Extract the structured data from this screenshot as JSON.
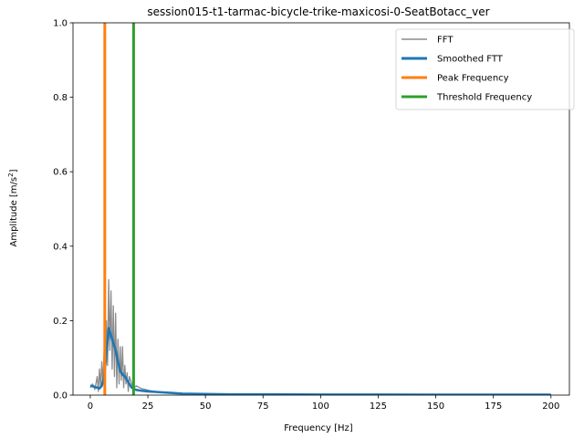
{
  "chart_data": {
    "type": "line",
    "title": "session015-t1-tarmac-bicycle-trike-maxicosi-0-SeatBotacc_ver",
    "xlabel": "Frequency [Hz]",
    "ylabel_main": "Amplitude [m/s",
    "ylabel_sup": "2",
    "ylabel_end": "]",
    "xlim": [
      -7.5,
      208
    ],
    "ylim": [
      0,
      1.0
    ],
    "xticks": [
      0,
      25,
      50,
      75,
      100,
      125,
      150,
      175,
      200
    ],
    "xtick_labels": [
      "0",
      "25",
      "50",
      "75",
      "100",
      "125",
      "150",
      "175",
      "200"
    ],
    "yticks": [
      0.0,
      0.2,
      0.4,
      0.6,
      0.8,
      1.0
    ],
    "ytick_labels": [
      "0.0",
      "0.2",
      "0.4",
      "0.6",
      "0.8",
      "1.0"
    ],
    "legend_position": "top-right",
    "series": [
      {
        "name": "FFT",
        "color": "#8c8c8c",
        "type": "line",
        "x": [
          0,
          1,
          2,
          3,
          3.5,
          4,
          4.5,
          5,
          5.5,
          6,
          6.5,
          7,
          7.5,
          8,
          8.5,
          9,
          9.5,
          10,
          10.5,
          11,
          11.5,
          12,
          12.5,
          13,
          13.5,
          14,
          14.5,
          15,
          15.5,
          16,
          16.5,
          17,
          18,
          19,
          20,
          22,
          24,
          26,
          28,
          30,
          35,
          40,
          50,
          60,
          80,
          100,
          125,
          150,
          175,
          200
        ],
        "values": [
          0.02,
          0.03,
          0.015,
          0.05,
          0.01,
          0.07,
          0.02,
          0.09,
          0.03,
          0.12,
          0.05,
          0.2,
          0.08,
          0.31,
          0.12,
          0.28,
          0.07,
          0.24,
          0.05,
          0.22,
          0.02,
          0.15,
          0.03,
          0.13,
          0.04,
          0.13,
          0.02,
          0.08,
          0.03,
          0.06,
          0.01,
          0.05,
          0.03,
          0.02,
          0.025,
          0.018,
          0.015,
          0.012,
          0.01,
          0.008,
          0.006,
          0.004,
          0.003,
          0.002,
          0.002,
          0.0015,
          0.0015,
          0.001,
          0.001,
          0.001
        ]
      },
      {
        "name": "Smoothed FTT",
        "color": "#1f77b4",
        "type": "line",
        "x": [
          0,
          1,
          2,
          3,
          4,
          5,
          6,
          7,
          8,
          9,
          10,
          11,
          12,
          13,
          14,
          15,
          16,
          17,
          18,
          19,
          20,
          22,
          25,
          30,
          35,
          40,
          50,
          60,
          80,
          100,
          125,
          150,
          175,
          200
        ],
        "values": [
          0.025,
          0.024,
          0.022,
          0.02,
          0.018,
          0.025,
          0.05,
          0.11,
          0.18,
          0.16,
          0.14,
          0.12,
          0.09,
          0.065,
          0.055,
          0.05,
          0.04,
          0.03,
          0.02,
          0.016,
          0.014,
          0.012,
          0.01,
          0.008,
          0.006,
          0.004,
          0.003,
          0.002,
          0.002,
          0.0015,
          0.0015,
          0.001,
          0.001,
          0.001
        ]
      },
      {
        "name": "Peak Frequency",
        "color": "#ff7f0e",
        "type": "vline",
        "x": 6.3
      },
      {
        "name": "Threshold Frequency",
        "color": "#2ca02c",
        "type": "vline",
        "x": 18.8
      }
    ]
  }
}
